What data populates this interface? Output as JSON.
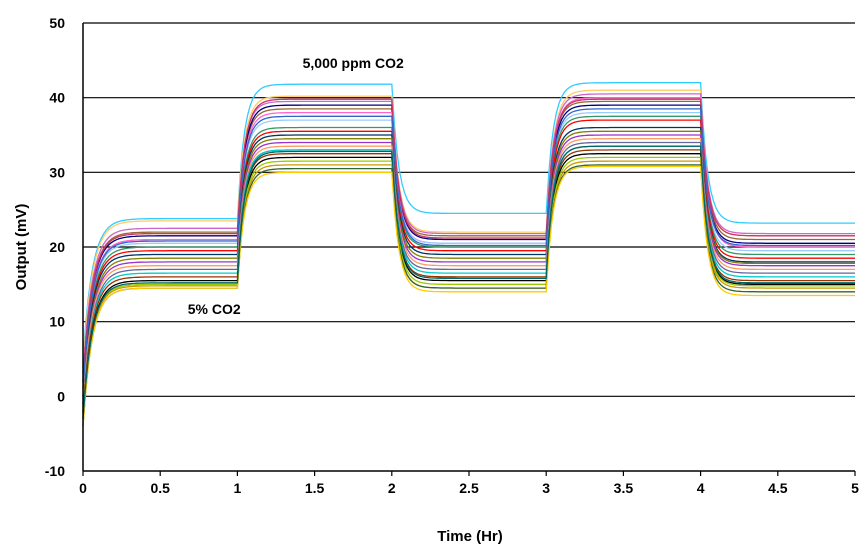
{
  "chart_data": {
    "type": "line",
    "title": "",
    "xlabel": "Time (Hr)",
    "ylabel": "Output (mV)",
    "xlim": [
      0,
      5
    ],
    "ylim": [
      -10,
      50
    ],
    "x_ticks": [
      "0",
      "0.5",
      "1",
      "1.5",
      "2",
      "2.5",
      "3",
      "3.5",
      "4",
      "4.5",
      "5"
    ],
    "y_ticks": [
      "-10",
      "0",
      "10",
      "20",
      "30",
      "40",
      "50"
    ],
    "grid": "horizontal",
    "legend": "none",
    "annotations": [
      {
        "text": "5,000 ppm CO2",
        "x": 1.75,
        "y": 44
      },
      {
        "text": "5% CO2",
        "x": 0.85,
        "y": 11
      }
    ],
    "step_times_hr": [
      0,
      1,
      2,
      3,
      4,
      5
    ],
    "series": [
      {
        "color": "#33ccff",
        "levels": [
          23.8,
          41.8,
          24.5,
          42.0,
          23.2
        ],
        "start": 5
      },
      {
        "color": "#ffcc66",
        "levels": [
          23.5,
          40.2,
          22.0,
          41.0,
          21.5
        ],
        "start": 4
      },
      {
        "color": "#cc66cc",
        "levels": [
          22.5,
          39.5,
          21.8,
          40.5,
          21.8
        ],
        "start": 3
      },
      {
        "color": "#996633",
        "levels": [
          22.0,
          38.5,
          21.5,
          39.5,
          21.0
        ],
        "start": 2
      },
      {
        "color": "#000080",
        "levels": [
          21.5,
          39.0,
          21.0,
          39.0,
          20.5
        ],
        "start": 2
      },
      {
        "color": "#ff66cc",
        "levels": [
          21.0,
          38.0,
          20.5,
          40.0,
          20.0
        ],
        "start": 1
      },
      {
        "color": "#99ccff",
        "levels": [
          20.5,
          37.0,
          20.5,
          38.0,
          19.5
        ],
        "start": 1
      },
      {
        "color": "#339966",
        "levels": [
          20.0,
          36.0,
          20.0,
          37.5,
          19.0
        ],
        "start": 0
      },
      {
        "color": "#ff0000",
        "levels": [
          19.5,
          35.5,
          19.5,
          37.0,
          18.5
        ],
        "start": 0
      },
      {
        "color": "#003366",
        "levels": [
          19.0,
          35.0,
          19.0,
          36.0,
          18.0
        ],
        "start": 0
      },
      {
        "color": "#808000",
        "levels": [
          18.5,
          34.5,
          18.5,
          35.5,
          17.8
        ],
        "start": -1
      },
      {
        "color": "#9933cc",
        "levels": [
          18.0,
          34.0,
          18.0,
          35.0,
          17.5
        ],
        "start": -1
      },
      {
        "color": "#ff9966",
        "levels": [
          17.5,
          33.5,
          17.5,
          34.5,
          17.0
        ],
        "start": -1
      },
      {
        "color": "#666699",
        "levels": [
          17.0,
          33.0,
          17.0,
          34.0,
          16.5
        ],
        "start": -2
      },
      {
        "color": "#00cccc",
        "levels": [
          16.5,
          33.0,
          16.5,
          33.5,
          16.0
        ],
        "start": -2
      },
      {
        "color": "#993300",
        "levels": [
          16.0,
          32.5,
          16.0,
          33.0,
          15.5
        ],
        "start": -2
      },
      {
        "color": "#000000",
        "levels": [
          15.5,
          32.0,
          15.5,
          32.5,
          15.0
        ],
        "start": -3
      },
      {
        "color": "#99cc00",
        "levels": [
          15.0,
          31.5,
          15.0,
          32.0,
          14.8
        ],
        "start": -3
      },
      {
        "color": "#cc9900",
        "levels": [
          14.8,
          31.0,
          14.5,
          31.5,
          14.5
        ],
        "start": -3
      },
      {
        "color": "#336633",
        "levels": [
          14.5,
          30.5,
          14.5,
          31.0,
          14.0
        ],
        "start": -4
      },
      {
        "color": "#ffcc00",
        "levels": [
          14.5,
          30.0,
          14.0,
          30.8,
          13.5
        ],
        "start": -4
      },
      {
        "color": "#006666",
        "levels": [
          15.2,
          32.8,
          15.8,
          33.5,
          15.2
        ],
        "start": -3
      },
      {
        "color": "#cc3366",
        "levels": [
          21.8,
          39.8,
          21.2,
          39.8,
          21.5
        ],
        "start": 2
      },
      {
        "color": "#3366cc",
        "levels": [
          20.8,
          37.5,
          20.2,
          38.5,
          20.2
        ],
        "start": 1
      }
    ]
  }
}
